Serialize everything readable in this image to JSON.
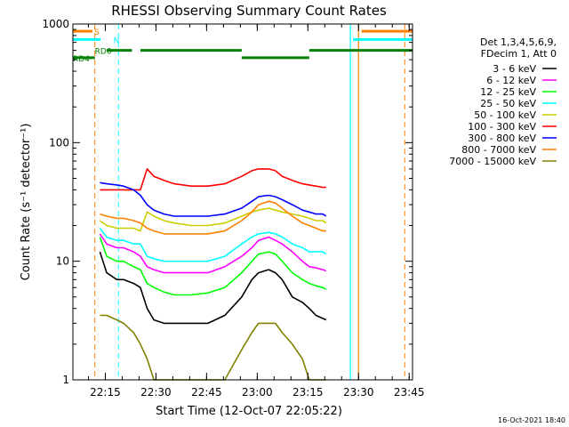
{
  "chart_data": {
    "type": "line",
    "title": "RHESSI Observing Summary Count Rates",
    "xlabel": "Start Time (12-Oct-07 22:05:22)",
    "ylabel": "Count Rate (s⁻¹ detector⁻¹)",
    "yscale": "log",
    "ylim": [
      1,
      1000
    ],
    "xlim_minutes": [
      0,
      100.6
    ],
    "x_ticks": [
      {
        "label": "22:15",
        "min": 9.6
      },
      {
        "label": "22:30",
        "min": 24.6
      },
      {
        "label": "22:45",
        "min": 39.6
      },
      {
        "label": "23:00",
        "min": 54.6
      },
      {
        "label": "23:15",
        "min": 69.6
      },
      {
        "label": "23:30",
        "min": 84.6
      },
      {
        "label": "23:45",
        "min": 99.6
      }
    ],
    "y_ticks": [
      {
        "label": "1",
        "v": 1
      },
      {
        "label": "10",
        "v": 10
      },
      {
        "label": "100",
        "v": 100
      },
      {
        "label": "1000",
        "v": 1000
      }
    ],
    "legend_header": [
      "Det 1,3,4,5,6,9,",
      "FDecim 1, Att 0"
    ],
    "legend_position": "right",
    "timestamp": "16-Oct-2021 18:40",
    "flag_labels": {
      "s": "S",
      "n": "N",
      "rd0": "RD0",
      "rd4": "RD4"
    },
    "series": [
      {
        "name": "3 - 6 keV",
        "color": "#000000",
        "x": [
          8,
          10,
          13,
          15,
          18,
          20,
          22,
          24,
          27,
          30,
          35,
          40,
          45,
          50,
          53,
          55,
          58,
          60,
          62,
          65,
          68,
          70,
          72,
          74,
          75
        ],
        "values": [
          12,
          8,
          7,
          7,
          6.5,
          6,
          4,
          3.2,
          3,
          3,
          3,
          3,
          3.5,
          5,
          7,
          8,
          8.5,
          8,
          7,
          5,
          4.5,
          4,
          3.5,
          3.3,
          3.2
        ]
      },
      {
        "name": "6 - 12 keV",
        "color": "#ff00ff",
        "x": [
          8,
          10,
          13,
          15,
          18,
          20,
          22,
          24,
          27,
          30,
          35,
          40,
          45,
          50,
          53,
          55,
          58,
          60,
          62,
          65,
          68,
          70,
          72,
          74,
          75
        ],
        "values": [
          17,
          14,
          13,
          13,
          12,
          11,
          9,
          8.5,
          8,
          8,
          8,
          8,
          9,
          11,
          13,
          15,
          16,
          15,
          14,
          12,
          10,
          9,
          8.8,
          8.5,
          8.3
        ]
      },
      {
        "name": "12 - 25 keV",
        "color": "#00ff00",
        "x": [
          8,
          10,
          13,
          15,
          18,
          20,
          22,
          24,
          27,
          30,
          35,
          40,
          45,
          50,
          53,
          55,
          58,
          60,
          62,
          65,
          68,
          70,
          72,
          74,
          75
        ],
        "values": [
          16,
          11,
          10,
          10,
          9,
          8.5,
          6.5,
          6,
          5.5,
          5.2,
          5.2,
          5.4,
          6,
          8,
          10,
          11.5,
          12,
          11.5,
          10,
          8,
          7,
          6.5,
          6.2,
          6,
          5.8
        ]
      },
      {
        "name": "25 - 50 keV",
        "color": "#00ffff",
        "x": [
          8,
          10,
          13,
          15,
          18,
          20,
          22,
          24,
          27,
          30,
          35,
          40,
          45,
          50,
          53,
          55,
          58,
          60,
          62,
          65,
          68,
          70,
          72,
          74,
          75
        ],
        "values": [
          19,
          16,
          15,
          15,
          14,
          14,
          11,
          10.5,
          10,
          10,
          10,
          10,
          11,
          14,
          16,
          17,
          17.5,
          17,
          16,
          14,
          13,
          12,
          12,
          12,
          11.5
        ]
      },
      {
        "name": "50 - 100 keV",
        "color": "#cccc00",
        "x": [
          8,
          10,
          13,
          15,
          18,
          20,
          22,
          24,
          27,
          30,
          35,
          40,
          45,
          50,
          53,
          55,
          58,
          60,
          62,
          65,
          68,
          70,
          72,
          74,
          75
        ],
        "values": [
          22,
          20,
          19,
          19,
          19,
          18,
          26,
          24,
          22,
          21,
          20,
          20,
          21,
          24,
          26,
          27,
          28,
          27,
          26,
          25,
          24,
          23,
          22,
          22,
          21
        ]
      },
      {
        "name": "100 - 300 keV",
        "color": "#ff0000",
        "x": [
          8,
          10,
          13,
          15,
          18,
          20,
          22,
          24,
          27,
          30,
          35,
          40,
          45,
          50,
          53,
          55,
          58,
          60,
          62,
          65,
          68,
          70,
          72,
          74,
          75
        ],
        "values": [
          40,
          40,
          40,
          40,
          40,
          40,
          60,
          52,
          48,
          45,
          43,
          43,
          45,
          52,
          58,
          60,
          60,
          58,
          52,
          48,
          45,
          44,
          43,
          42,
          42
        ]
      },
      {
        "name": "300 - 800 keV",
        "color": "#0000ff",
        "x": [
          8,
          10,
          13,
          15,
          18,
          20,
          22,
          24,
          27,
          30,
          35,
          40,
          45,
          50,
          53,
          55,
          58,
          60,
          62,
          65,
          68,
          70,
          72,
          74,
          75
        ],
        "values": [
          46,
          45,
          44,
          43,
          40,
          36,
          30,
          27,
          25,
          24,
          24,
          24,
          25,
          28,
          32,
          35,
          36,
          35,
          33,
          30,
          27,
          26,
          25,
          25,
          24
        ]
      },
      {
        "name": "800 - 7000 keV",
        "color": "#ff8000",
        "x": [
          8,
          10,
          13,
          15,
          18,
          20,
          22,
          24,
          27,
          30,
          35,
          40,
          45,
          50,
          53,
          55,
          58,
          60,
          62,
          65,
          68,
          70,
          72,
          74,
          75
        ],
        "values": [
          25,
          24,
          23,
          23,
          22,
          21,
          19,
          18,
          17,
          17,
          17,
          17,
          18,
          22,
          26,
          30,
          32,
          31,
          28,
          24,
          21,
          20,
          19,
          18,
          18
        ]
      },
      {
        "name": "7000 - 15000 keV",
        "color": "#808000",
        "x": [
          8,
          10,
          13,
          15,
          18,
          20,
          22,
          24,
          27,
          30,
          35,
          40,
          45,
          50,
          53,
          55,
          58,
          60,
          62,
          65,
          68,
          70,
          72,
          74,
          75
        ],
        "values": [
          3.5,
          3.5,
          3.2,
          3,
          2.5,
          2,
          1.5,
          1,
          1,
          1,
          1,
          1,
          1,
          1.8,
          2.5,
          3,
          3,
          3,
          2.5,
          2,
          1.5,
          1,
          1,
          1,
          1
        ]
      }
    ],
    "annotations": {
      "vlines_dashed": [
        {
          "color": "#ff8000",
          "min": 6.5
        },
        {
          "color": "#00ffff",
          "min": 13.5
        },
        {
          "color": "#ff8000",
          "min": 98.3
        }
      ],
      "vlines_solid": [
        {
          "color": "#00ffff",
          "min": 82.2
        },
        {
          "color": "#ff8000",
          "min": 84.6
        }
      ],
      "flags": [
        {
          "name": "S",
          "color": "#ff8000",
          "v": 870,
          "from": 0,
          "to": 5.8
        },
        {
          "name": "S",
          "color": "#ff8000",
          "v": 870,
          "from": 85.5,
          "to": 100.6
        },
        {
          "name": "N",
          "color": "#00ffff",
          "v": 740,
          "from": 0,
          "to": 8.2
        },
        {
          "name": "N",
          "color": "#00ffff",
          "v": 740,
          "from": 83.0,
          "to": 100.6
        },
        {
          "name": "RD0",
          "color": "#008000",
          "v": 600,
          "from": 10,
          "to": 17.5
        },
        {
          "name": "RD0",
          "color": "#008000",
          "v": 600,
          "from": 20,
          "to": 50
        },
        {
          "name": "RD0",
          "color": "#008000",
          "v": 600,
          "from": 70,
          "to": 100.6
        },
        {
          "name": "RD4",
          "color": "#008000",
          "v": 520,
          "from": 0,
          "to": 6.5
        },
        {
          "name": "RD4",
          "color": "#008000",
          "v": 520,
          "from": 50,
          "to": 70
        }
      ]
    }
  }
}
